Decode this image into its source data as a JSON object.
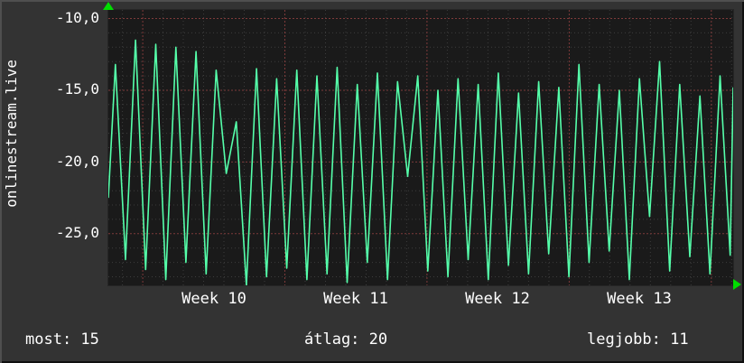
{
  "vertical_label": "onlinestream.live",
  "footer": {
    "most": "most: 15",
    "atlag": "átlag: 20",
    "legjobb": "legjobb: 11"
  },
  "icons": {
    "y_axis_arrow": "up-arrow",
    "x_axis_arrow": "right-arrow"
  },
  "chart_data": {
    "type": "line",
    "title": "onlinestream.live",
    "xlabel": "",
    "ylabel": "onlinestream.live",
    "x_tick_labels": [
      "Week 10",
      "Week 11",
      "Week 12",
      "Week 13"
    ],
    "y_ticks": [
      -10,
      -15,
      -20,
      -25
    ],
    "y_tick_labels": [
      "-10,0",
      "-15,0",
      "-20,0",
      "-25,0"
    ],
    "ylim": [
      -28.6,
      -9.4
    ],
    "grid": true,
    "legend_position": "bottom",
    "stats": {
      "most": 15,
      "atlag": 20,
      "legjobb": 11
    },
    "layout": {
      "week_start_frac": 0.055,
      "day_frac": 0.0325
    },
    "series": [
      {
        "name": "onlinestream.live",
        "note": "daily oscillation over ~31 days, values read from axis",
        "start": -22.5,
        "end": -14.8,
        "peaks": [
          -13.2,
          -11.5,
          -11.8,
          -12.0,
          -12.3,
          -13.6,
          -17.2,
          -13.5,
          -14.2,
          -13.6,
          -14.0,
          -13.4,
          -14.6,
          -13.8,
          -14.4,
          -14.0,
          -15.0,
          -14.2,
          -14.6,
          -13.8,
          -15.2,
          -14.4,
          -14.8,
          -13.2,
          -14.6,
          -15.0,
          -14.2,
          -13.0,
          -14.6,
          -15.4,
          -14.0
        ],
        "troughs": [
          -26.8,
          -27.5,
          -28.2,
          -27.0,
          -27.8,
          -20.8,
          -28.6,
          -28.0,
          -27.4,
          -28.2,
          -27.8,
          -28.4,
          -27.0,
          -28.2,
          -21.0,
          -27.6,
          -28.0,
          -26.8,
          -28.2,
          -27.2,
          -27.8,
          -26.4,
          -28.0,
          -27.0,
          -26.2,
          -28.2,
          -23.8,
          -27.6,
          -26.6,
          -27.8,
          -26.5
        ]
      }
    ],
    "colors": {
      "line": "#55ffaa",
      "background": "#333333",
      "canvas": "#1a1a1a",
      "grid_minor": "#3c3c3c",
      "grid_major": "#7d3a3a",
      "text": "#ffffff",
      "arrow": "#00dd00"
    }
  }
}
